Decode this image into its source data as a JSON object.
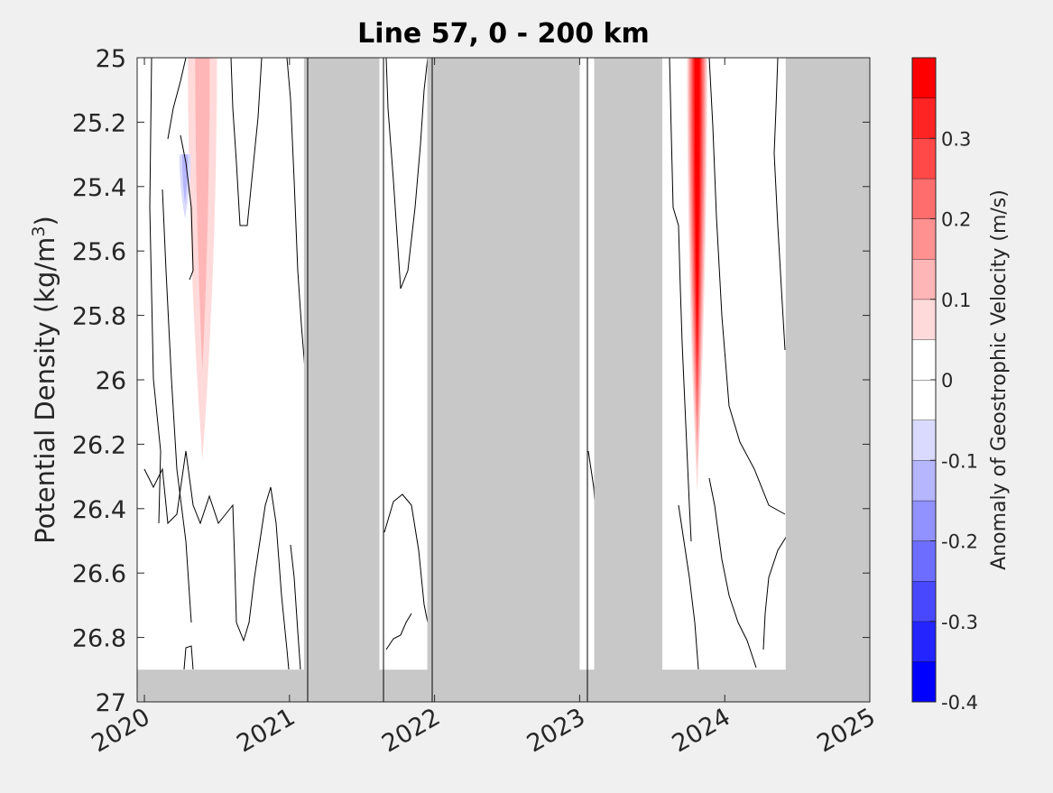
{
  "chart_data": {
    "type": "heatmap",
    "title": "Line 57, 0 - 200 km",
    "ylabel": "Potential Density (kg/m",
    "ylabel_sup": "3",
    "ylabel_close": ")",
    "xlabel": "",
    "colorbar_label": "Anomaly of Geostrophic Velocity (m/s)",
    "xlim": [
      2019.95,
      2025.0
    ],
    "ylim": [
      25.0,
      27.0
    ],
    "y_reversed": true,
    "x_ticks": [
      2020,
      2021,
      2022,
      2023,
      2024,
      2025
    ],
    "x_tick_labels": [
      "2020",
      "2021",
      "2022",
      "2023",
      "2024",
      "2025"
    ],
    "y_ticks": [
      25,
      25.2,
      25.4,
      25.6,
      25.8,
      26,
      26.2,
      26.4,
      26.6,
      26.8,
      27
    ],
    "y_tick_labels": [
      "25",
      "25.2",
      "25.4",
      "25.6",
      "25.8",
      "26",
      "26.2",
      "26.4",
      "26.6",
      "26.8",
      "27"
    ],
    "colorbar": {
      "range": [
        -0.4,
        0.4
      ],
      "ticks": [
        -0.4,
        -0.3,
        -0.2,
        -0.1,
        0,
        0.1,
        0.2,
        0.3
      ],
      "tick_labels": [
        "-0.4",
        "-0.3",
        "-0.2",
        "-0.1",
        "0",
        "0.1",
        "0.2",
        "0.3"
      ],
      "levels": [
        {
          "from": -0.4,
          "to": -0.35,
          "color": "#0000ff"
        },
        {
          "from": -0.35,
          "to": -0.3,
          "color": "#2424ff"
        },
        {
          "from": -0.3,
          "to": -0.25,
          "color": "#4848ff"
        },
        {
          "from": -0.25,
          "to": -0.2,
          "color": "#6d6dff"
        },
        {
          "from": -0.2,
          "to": -0.15,
          "color": "#9191ff"
        },
        {
          "from": -0.15,
          "to": -0.1,
          "color": "#b6b6ff"
        },
        {
          "from": -0.1,
          "to": -0.05,
          "color": "#dadaff"
        },
        {
          "from": -0.05,
          "to": 0.0,
          "color": "#ffffff"
        },
        {
          "from": 0.0,
          "to": 0.05,
          "color": "#ffffff"
        },
        {
          "from": 0.05,
          "to": 0.1,
          "color": "#ffdada"
        },
        {
          "from": 0.1,
          "to": 0.15,
          "color": "#ffb6b6"
        },
        {
          "from": 0.15,
          "to": 0.2,
          "color": "#ff9191"
        },
        {
          "from": 0.2,
          "to": 0.25,
          "color": "#ff6d6d"
        },
        {
          "from": 0.25,
          "to": 0.3,
          "color": "#ff4848"
        },
        {
          "from": 0.3,
          "to": 0.35,
          "color": "#ff2424"
        },
        {
          "from": 0.35,
          "to": 0.4,
          "color": "#ff0000"
        }
      ]
    },
    "no_data_color": "#c8c8c8",
    "no_data_periods": [
      {
        "x0": 2021.1,
        "x1": 2021.62
      },
      {
        "x0": 2021.95,
        "x1": 2023.0
      },
      {
        "x0": 2023.1,
        "x1": 2023.57
      },
      {
        "x0": 2024.42,
        "x1": 2025.0
      }
    ],
    "no_data_bottom_below_density": 26.9,
    "anomaly_features": [
      {
        "name": "positive core 2023.8",
        "x": [
          2023.74,
          2023.88
        ],
        "y": [
          25.0,
          26.35
        ],
        "peak": 0.38
      },
      {
        "name": "positive 2020.4",
        "x": [
          2020.3,
          2020.5
        ],
        "y": [
          25.0,
          26.25
        ],
        "peak": 0.12
      },
      {
        "name": "negative 2020.3",
        "x": [
          2020.24,
          2020.32
        ],
        "y": [
          25.3,
          25.5
        ],
        "peak": -0.08
      }
    ]
  }
}
